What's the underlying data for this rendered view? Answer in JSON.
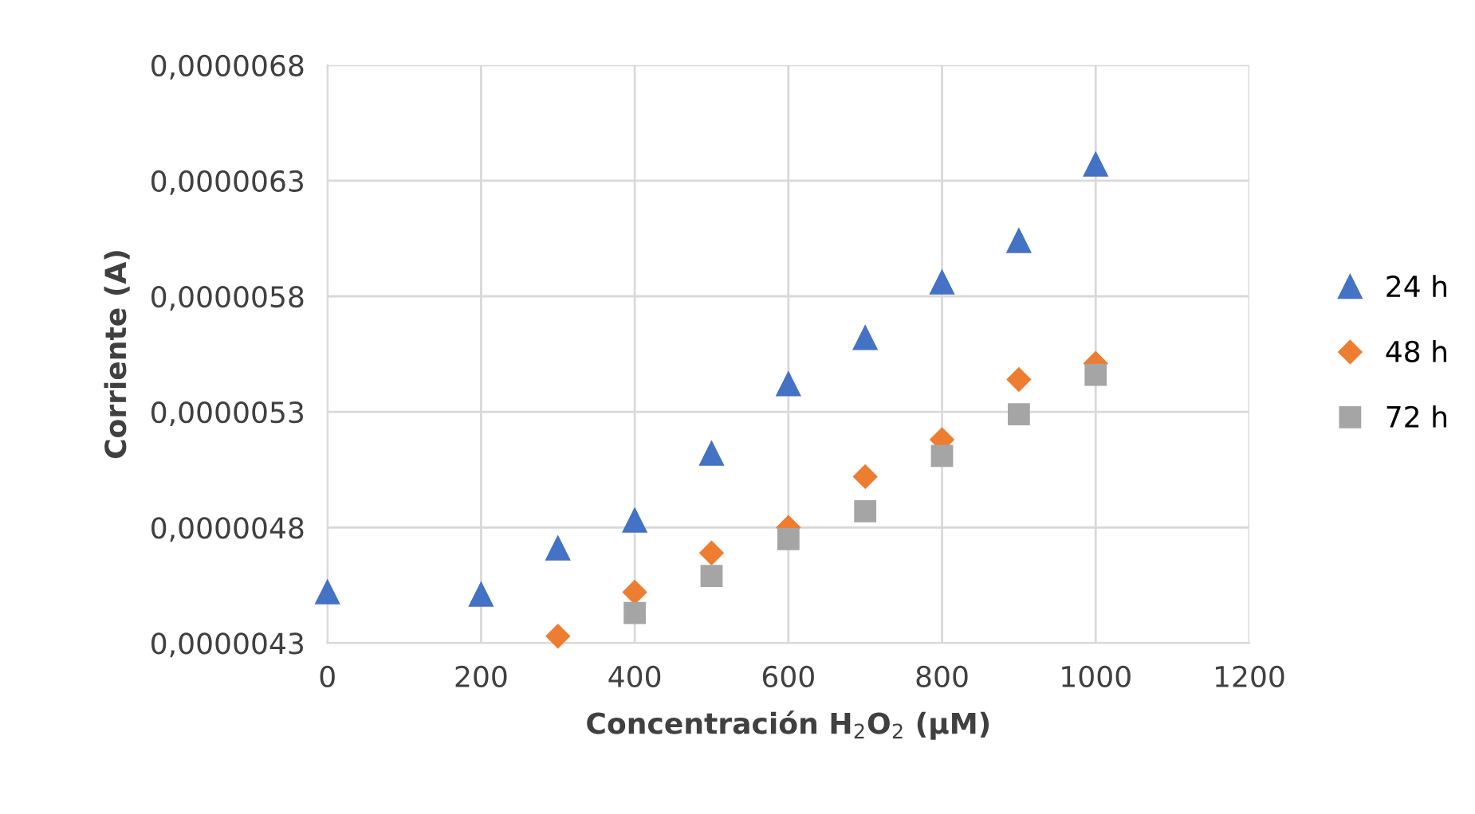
{
  "chart_data": {
    "type": "scatter",
    "xlabel": "Concentración H$_{2}$O$_{2}$ (μM)",
    "ylabel": "Corriente (A)",
    "xlim": [
      0,
      1200
    ],
    "xticks": [
      0,
      200,
      400,
      600,
      800,
      1000,
      1200
    ],
    "ylim": [
      4.3e-06,
      6.8e-06
    ],
    "yticks": [
      {
        "value": 4.3e-06,
        "label": "0,0000043"
      },
      {
        "value": 4.8e-06,
        "label": "0,0000048"
      },
      {
        "value": 5.3e-06,
        "label": "0,0000053"
      },
      {
        "value": 5.8e-06,
        "label": "0,0000058"
      },
      {
        "value": 6.3e-06,
        "label": "0,0000063"
      },
      {
        "value": 6.8e-06,
        "label": "0,0000068"
      }
    ],
    "grid": true,
    "legend": "right",
    "series": [
      {
        "name": "24 h",
        "color": "#4472c4",
        "marker": "triangle",
        "x": [
          0,
          200,
          300,
          400,
          500,
          600,
          700,
          800,
          900,
          1000
        ],
        "values": [
          4.52e-06,
          4.51e-06,
          4.71e-06,
          4.83e-06,
          5.12e-06,
          5.42e-06,
          5.62e-06,
          5.86e-06,
          6.04e-06,
          6.37e-06
        ]
      },
      {
        "name": "48 h",
        "color": "#ed7d31",
        "marker": "diamond",
        "x": [
          300,
          400,
          500,
          600,
          700,
          800,
          900,
          1000
        ],
        "values": [
          4.33e-06,
          4.52e-06,
          4.69e-06,
          4.8e-06,
          5.02e-06,
          5.18e-06,
          5.44e-06,
          5.51e-06
        ]
      },
      {
        "name": "72 h",
        "color": "#a5a5a5",
        "marker": "square",
        "x": [
          400,
          500,
          600,
          700,
          800,
          900,
          1000
        ],
        "values": [
          4.43e-06,
          4.59e-06,
          4.75e-06,
          4.87e-06,
          5.11e-06,
          5.29e-06,
          5.46e-06
        ]
      }
    ]
  }
}
